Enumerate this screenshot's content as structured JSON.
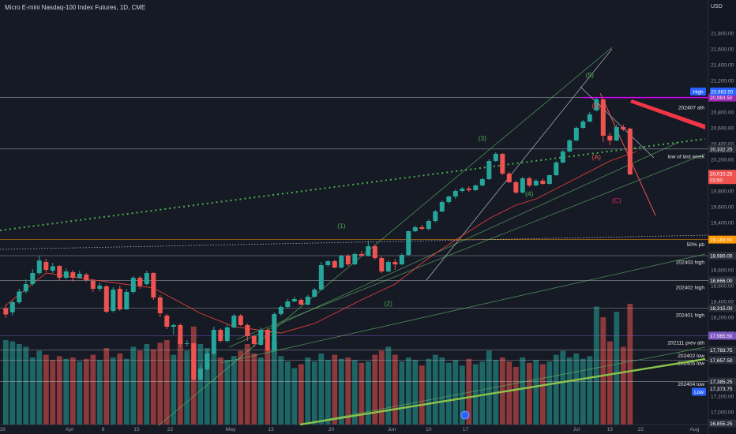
{
  "header": {
    "symbol_title": "Micro E-mini Nasdaq-100 Index Futures, 1D, CME",
    "currency": "USD"
  },
  "colors": {
    "bg": "#161a25",
    "up": "#26a69a",
    "down": "#ef5350",
    "text": "#d1d4dc",
    "grid": "#2a2e39"
  },
  "chart_data": {
    "type": "candlestick",
    "y_ticks": [
      "21,800.00",
      "21,600.00",
      "21,400.00",
      "21,200.00",
      "20,800.00",
      "20,600.00",
      "20,400.00",
      "20,200.00",
      "19,800.00",
      "19,600.00",
      "19,400.00",
      "18,800.00",
      "18,600.00",
      "18,400.00",
      "18,200.00",
      "18,000.00",
      "17,200.00",
      "17,000.00"
    ],
    "x_ticks": [
      "18",
      "Apr",
      "8",
      "15",
      "22",
      "May",
      "13",
      "20",
      "Jun",
      "10",
      "17",
      "Jul",
      "15",
      "22",
      "Aug"
    ],
    "candles": [
      [
        18312,
        18235,
        18356,
        18190
      ],
      [
        18262,
        18390,
        18410,
        18224
      ],
      [
        18389,
        18526,
        18560,
        18370
      ],
      [
        18526,
        18620,
        18680,
        18500
      ],
      [
        18620,
        18760,
        18810,
        18600
      ],
      [
        18758,
        18918,
        18980,
        18740
      ],
      [
        18900,
        18800,
        18940,
        18770
      ],
      [
        18790,
        18845,
        18890,
        18760
      ],
      [
        18850,
        18700,
        18860,
        18660
      ],
      [
        18700,
        18780,
        18820,
        18680
      ],
      [
        18770,
        18700,
        18800,
        18650
      ],
      [
        18700,
        18750,
        18790,
        18690
      ],
      [
        18740,
        18670,
        18760,
        18650
      ],
      [
        18660,
        18560,
        18680,
        18520
      ],
      [
        18560,
        18600,
        18640,
        18530
      ],
      [
        18590,
        18270,
        18610,
        18250
      ],
      [
        18280,
        18550,
        18580,
        18260
      ],
      [
        18560,
        18300,
        18600,
        18280
      ],
      [
        18300,
        18520,
        18560,
        18290
      ],
      [
        18520,
        18700,
        18720,
        18500
      ],
      [
        18700,
        18600,
        18720,
        18560
      ],
      [
        18620,
        18760,
        18790,
        18600
      ],
      [
        18760,
        18450,
        18770,
        18420
      ],
      [
        18450,
        18250,
        18480,
        18200
      ],
      [
        18220,
        18080,
        18240,
        18050
      ],
      [
        18080,
        18100,
        18120,
        17980
      ],
      [
        18100,
        17860,
        18120,
        17820
      ],
      [
        17860,
        17870,
        17910,
        17830
      ],
      [
        17870,
        17410,
        17880,
        17380
      ],
      [
        17410,
        17550,
        17600,
        17400
      ],
      [
        17540,
        17740,
        17780,
        17520
      ],
      [
        17740,
        18040,
        18080,
        17720
      ],
      [
        18040,
        17900,
        18060,
        17880
      ],
      [
        17900,
        18070,
        18110,
        17880
      ],
      [
        18070,
        18220,
        18240,
        18060
      ],
      [
        18220,
        18100,
        18240,
        18090
      ],
      [
        18100,
        17960,
        18120,
        17900
      ],
      [
        17960,
        17860,
        17980,
        17820
      ],
      [
        17850,
        18040,
        18070,
        17840
      ],
      [
        18040,
        17780,
        18060,
        17760
      ],
      [
        17780,
        18240,
        18260,
        17760
      ],
      [
        18240,
        18330,
        18350,
        18220
      ],
      [
        18330,
        18400,
        18430,
        18310
      ],
      [
        18400,
        18430,
        18460,
        18390
      ],
      [
        18420,
        18360,
        18440,
        18350
      ],
      [
        18360,
        18460,
        18480,
        18350
      ],
      [
        18460,
        18550,
        18570,
        18450
      ],
      [
        18550,
        18860,
        18900,
        18540
      ],
      [
        18860,
        18910,
        18920,
        18840
      ],
      [
        18910,
        18830,
        18930,
        18820
      ],
      [
        18830,
        18980,
        18990,
        18820
      ],
      [
        18980,
        18870,
        19000,
        18850
      ],
      [
        18870,
        19000,
        19020,
        18860
      ],
      [
        19000,
        18980,
        19040,
        18970
      ],
      [
        18980,
        19100,
        19170,
        18970
      ],
      [
        19100,
        18950,
        19120,
        18930
      ],
      [
        18950,
        18780,
        18970,
        18760
      ],
      [
        18780,
        18900,
        18920,
        18770
      ],
      [
        18900,
        18870,
        18940,
        18800
      ],
      [
        18870,
        18990,
        19010,
        18860
      ],
      [
        18990,
        19290,
        19300,
        18980
      ],
      [
        19290,
        19340,
        19360,
        19280
      ],
      [
        19340,
        19320,
        19370,
        19310
      ],
      [
        19320,
        19420,
        19440,
        19300
      ],
      [
        19420,
        19540,
        19560,
        19400
      ],
      [
        19540,
        19660,
        19680,
        19530
      ],
      [
        19660,
        19730,
        19740,
        19640
      ],
      [
        19730,
        19800,
        19820,
        19700
      ],
      [
        19800,
        19830,
        19850,
        19780
      ],
      [
        19830,
        19810,
        19860,
        19790
      ],
      [
        19810,
        19870,
        19880,
        19800
      ],
      [
        19870,
        19950,
        19970,
        19860
      ],
      [
        19950,
        20180,
        20200,
        19940
      ],
      [
        20180,
        20270,
        20290,
        20170
      ],
      [
        20270,
        20020,
        20280,
        20000
      ],
      [
        20020,
        19910,
        20040,
        19900
      ],
      [
        19910,
        19780,
        19930,
        19760
      ],
      [
        19780,
        19960,
        19980,
        19770
      ],
      [
        19960,
        19870,
        19980,
        19850
      ],
      [
        19870,
        19930,
        19950,
        19860
      ],
      [
        19930,
        19890,
        19960,
        19880
      ],
      [
        19890,
        20000,
        20010,
        19880
      ],
      [
        20000,
        20160,
        20180,
        19990
      ],
      [
        20160,
        20300,
        20320,
        20150
      ],
      [
        20300,
        20440,
        20460,
        20290
      ],
      [
        20440,
        20600,
        20620,
        20430
      ],
      [
        20600,
        20680,
        20700,
        20590
      ],
      [
        20680,
        20770,
        20800,
        20670
      ],
      [
        20820,
        20960,
        20983,
        20810
      ],
      [
        20960,
        20500,
        20970,
        20420
      ],
      [
        20500,
        20440,
        20540,
        20380
      ],
      [
        20440,
        20610,
        20640,
        20430
      ],
      [
        20610,
        20580,
        20640,
        20560
      ],
      [
        20590,
        20010,
        20600,
        20000
      ]
    ],
    "volume": [
      [
        0.63,
        1
      ],
      [
        0.62,
        1
      ],
      [
        0.6,
        1
      ],
      [
        0.58,
        1
      ],
      [
        0.5,
        1
      ],
      [
        0.55,
        1
      ],
      [
        0.52,
        0
      ],
      [
        0.48,
        0
      ],
      [
        0.51,
        0
      ],
      [
        0.49,
        1
      ],
      [
        0.5,
        0
      ],
      [
        0.47,
        1
      ],
      [
        0.49,
        0
      ],
      [
        0.52,
        0
      ],
      [
        0.48,
        1
      ],
      [
        0.57,
        0
      ],
      [
        0.5,
        1
      ],
      [
        0.53,
        0
      ],
      [
        0.49,
        1
      ],
      [
        0.58,
        1
      ],
      [
        0.55,
        0
      ],
      [
        0.6,
        1
      ],
      [
        0.56,
        0
      ],
      [
        0.61,
        0
      ],
      [
        0.63,
        0
      ],
      [
        0.52,
        1
      ],
      [
        0.64,
        0
      ],
      [
        0.55,
        1
      ],
      [
        0.73,
        0
      ],
      [
        0.6,
        1
      ],
      [
        0.57,
        1
      ],
      [
        0.54,
        1
      ],
      [
        0.5,
        0
      ],
      [
        0.48,
        1
      ],
      [
        0.51,
        1
      ],
      [
        0.55,
        0
      ],
      [
        0.6,
        0
      ],
      [
        0.53,
        0
      ],
      [
        0.5,
        1
      ],
      [
        0.56,
        0
      ],
      [
        0.62,
        1
      ],
      [
        0.51,
        1
      ],
      [
        0.47,
        1
      ],
      [
        0.42,
        1
      ],
      [
        0.45,
        0
      ],
      [
        0.5,
        1
      ],
      [
        0.47,
        1
      ],
      [
        0.53,
        1
      ],
      [
        0.48,
        1
      ],
      [
        0.52,
        0
      ],
      [
        0.49,
        1
      ],
      [
        0.5,
        0
      ],
      [
        0.48,
        1
      ],
      [
        0.46,
        0
      ],
      [
        0.47,
        1
      ],
      [
        0.52,
        0
      ],
      [
        0.55,
        0
      ],
      [
        0.58,
        1
      ],
      [
        0.52,
        0
      ],
      [
        0.47,
        1
      ],
      [
        0.5,
        1
      ],
      [
        0.48,
        1
      ],
      [
        0.44,
        0
      ],
      [
        0.49,
        1
      ],
      [
        0.52,
        1
      ],
      [
        0.5,
        1
      ],
      [
        0.46,
        1
      ],
      [
        0.48,
        1
      ],
      [
        0.44,
        1
      ],
      [
        0.49,
        0
      ],
      [
        0.45,
        1
      ],
      [
        0.47,
        1
      ],
      [
        0.55,
        1
      ],
      [
        0.48,
        1
      ],
      [
        0.5,
        0
      ],
      [
        0.47,
        0
      ],
      [
        0.43,
        0
      ],
      [
        0.5,
        1
      ],
      [
        0.46,
        0
      ],
      [
        0.48,
        1
      ],
      [
        0.45,
        0
      ],
      [
        0.47,
        1
      ],
      [
        0.52,
        1
      ],
      [
        0.55,
        1
      ],
      [
        0.5,
        1
      ],
      [
        0.53,
        1
      ],
      [
        0.49,
        1
      ],
      [
        0.51,
        1
      ],
      [
        0.88,
        1
      ],
      [
        0.8,
        0
      ],
      [
        0.62,
        0
      ],
      [
        0.84,
        1
      ],
      [
        0.58,
        0
      ],
      [
        0.9,
        0
      ]
    ],
    "moving_average": [
      [
        0,
        18350
      ],
      [
        6,
        18760
      ],
      [
        15,
        18650
      ],
      [
        22,
        18570
      ],
      [
        29,
        18250
      ],
      [
        34,
        18080
      ],
      [
        41,
        18000
      ],
      [
        46,
        18120
      ],
      [
        53,
        18420
      ],
      [
        58,
        18620
      ],
      [
        63,
        18950
      ],
      [
        67,
        19180
      ],
      [
        72,
        19450
      ],
      [
        76,
        19620
      ],
      [
        79,
        19700
      ],
      [
        85,
        19960
      ],
      [
        90,
        20180
      ],
      [
        94,
        20300
      ]
    ],
    "wave_labels": [
      {
        "text": "(1)",
        "idx": 50,
        "price": 19330,
        "color": "#4caf50"
      },
      {
        "text": "(2)",
        "idx": 57,
        "price": 18345,
        "color": "#4caf50"
      },
      {
        "text": "(3)",
        "idx": 71,
        "price": 20440,
        "color": "#4caf50"
      },
      {
        "text": "(4)",
        "idx": 78,
        "price": 19735,
        "color": "#4caf50"
      },
      {
        "text": "(5)",
        "idx": 87,
        "price": 21240,
        "color": "#4caf50"
      },
      {
        "text": "(B)",
        "idx": 88,
        "price": 20850,
        "color": "#ef5350"
      },
      {
        "text": "(A)",
        "idx": 88,
        "price": 20200,
        "color": "#ef5350"
      },
      {
        "text": "(C)",
        "idx": 91,
        "price": 19650,
        "color": "#e91e63"
      }
    ],
    "horizontal_levels": [
      {
        "price": 20983.5,
        "label": "202407 ath",
        "label_price": 20860,
        "color": "#b3b6bd"
      },
      {
        "price": 20332.25,
        "label": "low of last week",
        "label_price": 20240,
        "color": "#b3b6bd"
      },
      {
        "price": 19183.5,
        "label": "50% pb",
        "label_price": 19125,
        "color": "#ff9800"
      },
      {
        "price": 18980,
        "label": "202403 high",
        "label_price": 18900,
        "color": "#b3b6bd"
      },
      {
        "price": 18666,
        "label": "202402 high",
        "label_price": 18580,
        "color": "#b3b6bd"
      },
      {
        "price": 18315,
        "label": "202401 high",
        "label_price": 18230,
        "color": "#b3b6bd"
      },
      {
        "price": 17965.5,
        "label": "202111 prev ath",
        "label_price": 17880,
        "color": "#7e57c2"
      },
      {
        "price": 17783.75,
        "label": "202402 low",
        "label_price": 17715,
        "color": "#b3b6bd"
      },
      {
        "price": 17657.5,
        "label": "202405 low",
        "label_price": 17620,
        "color": "#b3b6bd"
      },
      {
        "price": 17385.25,
        "label": "202404 low",
        "label_price": 17355,
        "color": "#b3b6bd"
      }
    ],
    "price_badges": [
      {
        "text": "20,983.50",
        "price": 20983.5,
        "bg": "#9c27b0"
      },
      {
        "text": "20,332.25",
        "price": 20332.25,
        "bg": "#2a2e39"
      },
      {
        "text": "20,010.25",
        "price": 20018,
        "bg": "#ef5350"
      },
      {
        "text": "03:50",
        "price": 19938,
        "bg": "#ef5350"
      },
      {
        "text": "19,183.50",
        "price": 19183.5,
        "bg": "#ff9800"
      },
      {
        "text": "18,980.00",
        "price": 18980,
        "bg": "#2a2e39"
      },
      {
        "text": "18,666.00",
        "price": 18666,
        "bg": "#2a2e39"
      },
      {
        "text": "18,315.00",
        "price": 18315,
        "bg": "#2a2e39"
      },
      {
        "text": "17,965.50",
        "price": 17965.5,
        "bg": "#7e57c2"
      },
      {
        "text": "17,783.75",
        "price": 17783.75,
        "bg": "#2a2e39"
      },
      {
        "text": "17,657.50",
        "price": 17657.5,
        "bg": "#2a2e39"
      },
      {
        "text": "17,385.25",
        "price": 17385.25,
        "bg": "#2a2e39"
      },
      {
        "text": "17,373.75",
        "price": 17296,
        "bg": "#1e222d"
      },
      {
        "text": "16,855.25",
        "price": 16855.25,
        "bg": "#2a2e39"
      }
    ],
    "high_label": {
      "text": "High",
      "value_text": "20,983.50"
    },
    "low_label": {
      "text": "Low"
    },
    "event_icon": "dividend-circle-icon"
  }
}
